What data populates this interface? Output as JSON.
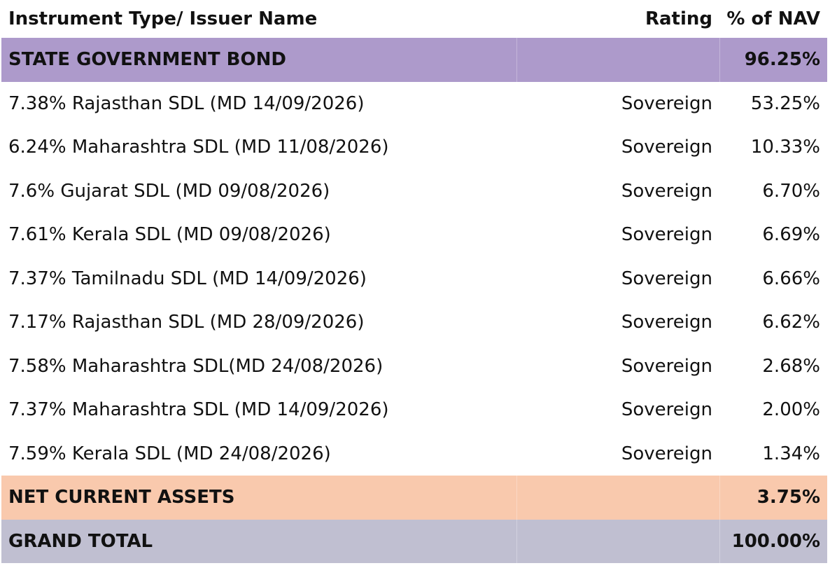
{
  "table": {
    "header": [
      "Instrument Type/ Issuer Name",
      "Rating",
      "% of NAV"
    ],
    "section": {
      "name": "STATE GOVERNMENT BOND",
      "nav": "96.25%"
    },
    "rows": [
      [
        "7.38% Rajasthan SDL (MD 14/09/2026)",
        "Sovereign",
        "53.25%"
      ],
      [
        "6.24% Maharashtra SDL (MD 11/08/2026)",
        "Sovereign",
        "10.33%"
      ],
      [
        "7.6% Gujarat SDL (MD 09/08/2026)",
        "Sovereign",
        "6.70%"
      ],
      [
        "7.61% Kerala SDL (MD 09/08/2026)",
        "Sovereign",
        "6.69%"
      ],
      [
        "7.37% Tamilnadu SDL (MD 14/09/2026)",
        "Sovereign",
        "6.66%"
      ],
      [
        "7.17% Rajasthan SDL (MD 28/09/2026)",
        "Sovereign",
        "6.62%"
      ],
      [
        "7.58% Maharashtra SDL(MD 24/08/2026)",
        "Sovereign",
        "2.68%"
      ],
      [
        "7.37% Maharashtra SDL (MD 14/09/2026)",
        "Sovereign",
        "2.00%"
      ],
      [
        "7.59% Kerala SDL (MD 24/08/2026)",
        "Sovereign",
        "1.34%"
      ]
    ],
    "net_current_assets": {
      "name": "NET CURRENT ASSETS",
      "nav": "3.75%"
    },
    "grand_total": {
      "name": "GRAND TOTAL",
      "nav": "100.00%"
    }
  }
}
